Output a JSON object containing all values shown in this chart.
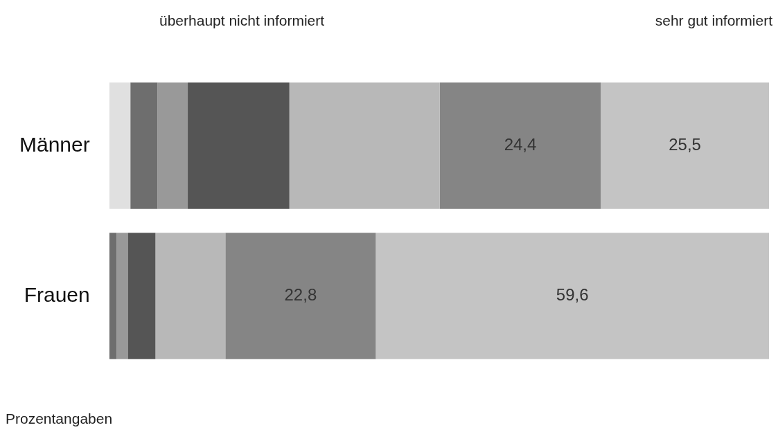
{
  "chart_data": {
    "type": "bar",
    "orientation": "horizontal",
    "stacked": true,
    "categories": [
      "Männer",
      "Frauen"
    ],
    "xlim": [
      0,
      100
    ],
    "tick_labels": "y",
    "series": [
      {
        "color": "#e0e0e0",
        "values": [
          3.2,
          null
        ]
      },
      {
        "color": "#6e6e6e",
        "values": [
          4.1,
          1.1
        ]
      },
      {
        "color": "#999999",
        "values": [
          4.6,
          1.7
        ]
      },
      {
        "color": "#555555",
        "values": [
          15.4,
          4.2
        ]
      },
      {
        "color": "#b8b8b8",
        "values": [
          22.8,
          10.6
        ]
      },
      {
        "color": "#858585",
        "values": [
          24.4,
          22.8
        ],
        "value_labels": [
          "24,4",
          "22,8"
        ]
      },
      {
        "color": "#c4c4c4",
        "values": [
          25.5,
          59.6
        ],
        "value_labels": [
          "25,5",
          "59,6"
        ]
      }
    ],
    "annotations": [
      "überhaupt nicht informiert",
      "sehr gut informiert",
      "Prozentangaben"
    ]
  }
}
